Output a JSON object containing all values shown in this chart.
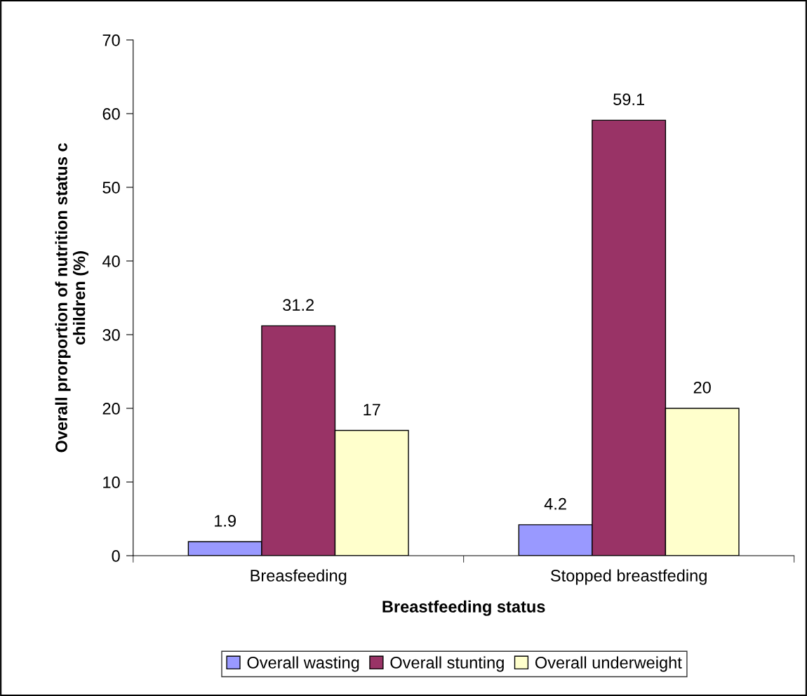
{
  "chart_data": {
    "type": "bar",
    "xlabel": "Breastfeeding status",
    "ylabel": "Overall prorportion of nutrition status c\nchildren (%)",
    "categories": [
      "Breasfeeding",
      "Stopped breastfeding"
    ],
    "series": [
      {
        "name": "Overall wasting",
        "color": "#9999ff",
        "values": [
          1.9,
          4.2
        ]
      },
      {
        "name": "Overall stunting",
        "color": "#993366",
        "values": [
          31.2,
          59.1
        ]
      },
      {
        "name": "Overall underweight",
        "color": "#ffffcc",
        "values": [
          17,
          20
        ]
      }
    ],
    "ylim": [
      0,
      70
    ],
    "yticks": [
      0,
      10,
      20,
      30,
      40,
      50,
      60,
      70
    ],
    "data_labels": true,
    "grid": false,
    "legend": "bottom"
  }
}
